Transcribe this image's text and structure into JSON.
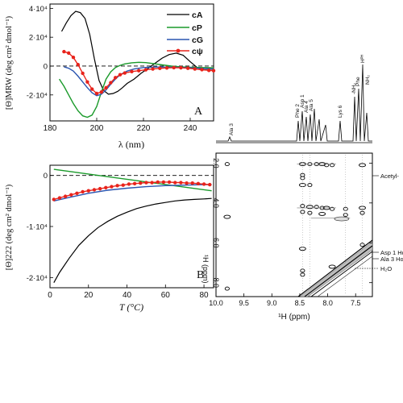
{
  "panelA": {
    "label": "A",
    "xlabel": "λ (nm)",
    "ylabel": "[Θ]MRW (deg cm² dmol⁻¹)",
    "xlim": [
      180,
      250
    ],
    "ylim": [
      -38000,
      43000
    ],
    "xticks": [
      "180",
      "200",
      "220",
      "240"
    ],
    "yticks": [
      "4·10⁴",
      "2·10⁴",
      "0",
      "-2·10⁴"
    ],
    "legend": [
      "cA",
      "cP",
      "cG",
      "cψ"
    ],
    "colors": {
      "cA": "#000000",
      "cP": "#1a9a2a",
      "cG": "#2a55b0",
      "cpsi": "#e8231b"
    },
    "chart_data": {
      "type": "line",
      "series": [
        {
          "name": "cA",
          "x": [
            185,
            187,
            189,
            191,
            193,
            195,
            197,
            199,
            201,
            203,
            205,
            207,
            209,
            211,
            213,
            216,
            219,
            222,
            225,
            228,
            231,
            234,
            237,
            240,
            243,
            246,
            250
          ],
          "y": [
            24000,
            30000,
            35000,
            38000,
            37000,
            33000,
            22000,
            5000,
            -10000,
            -17000,
            -19500,
            -19000,
            -17500,
            -15000,
            -12000,
            -9000,
            -5000,
            -1500,
            2000,
            5500,
            8000,
            9000,
            7500,
            3000,
            -1000,
            -2500,
            -3000
          ]
        },
        {
          "name": "cP",
          "x": [
            184,
            186,
            188,
            190,
            192,
            194,
            196,
            198,
            200,
            202,
            204,
            206,
            208,
            210,
            212,
            215,
            218,
            221,
            224,
            228,
            232,
            236,
            240,
            245,
            250
          ],
          "y": [
            -9000,
            -14000,
            -20000,
            -26000,
            -31000,
            -34500,
            -35500,
            -34000,
            -28000,
            -18000,
            -9000,
            -4000,
            -1000,
            500,
            1500,
            2300,
            2600,
            2400,
            1800,
            800,
            0,
            -500,
            -800,
            -1000,
            -1200
          ]
        },
        {
          "name": "cG",
          "x": [
            186,
            188,
            190,
            192,
            194,
            196,
            198,
            200,
            202,
            204,
            206,
            208,
            210,
            213,
            216,
            220,
            225,
            230,
            235,
            240,
            245,
            250
          ],
          "y": [
            -500,
            -1500,
            -3500,
            -7000,
            -11000,
            -15000,
            -18500,
            -20500,
            -19500,
            -16500,
            -12500,
            -9000,
            -6000,
            -3500,
            -2000,
            -1000,
            -700,
            -700,
            -900,
            -1200,
            -1600,
            -2000
          ]
        },
        {
          "name": "cψ",
          "x": [
            186,
            188,
            190,
            192,
            194,
            196,
            198,
            200,
            202,
            204,
            206,
            208,
            210,
            212,
            215,
            218,
            221,
            224,
            227,
            230,
            233,
            236,
            239,
            242,
            245,
            248,
            250
          ],
          "y": [
            10000,
            9000,
            6000,
            1000,
            -5000,
            -11000,
            -16000,
            -19000,
            -18000,
            -15000,
            -11500,
            -8000,
            -6000,
            -4800,
            -3800,
            -3200,
            -2600,
            -2000,
            -1600,
            -1300,
            -1100,
            -1200,
            -1500,
            -2000,
            -2500,
            -3000,
            -3200
          ]
        }
      ]
    }
  },
  "panelB": {
    "label": "B",
    "xlabel": "T (°C)",
    "ylabel": "[Θ]222 (deg cm² dmol⁻¹)",
    "xlim": [
      0,
      85
    ],
    "ylim": [
      -22000,
      2000
    ],
    "xticks": [
      "0",
      "20",
      "40",
      "60",
      "80"
    ],
    "yticks": [
      "0",
      "-1·10⁴",
      "-2·10⁴"
    ],
    "chart_data": {
      "type": "line",
      "series": [
        {
          "name": "cA",
          "x": [
            2,
            5,
            10,
            15,
            20,
            25,
            30,
            35,
            40,
            45,
            50,
            55,
            60,
            65,
            70,
            75,
            80,
            84
          ],
          "y": [
            -21000,
            -19000,
            -16200,
            -13700,
            -11800,
            -10200,
            -9000,
            -8000,
            -7200,
            -6500,
            -6000,
            -5600,
            -5300,
            -5000,
            -4800,
            -4700,
            -4600,
            -4500
          ]
        },
        {
          "name": "cP",
          "x": [
            2,
            84
          ],
          "y": [
            1200,
            -3000
          ]
        },
        {
          "name": "cG",
          "x": [
            2,
            10,
            20,
            30,
            40,
            50,
            60,
            70,
            80,
            84
          ],
          "y": [
            -5000,
            -4300,
            -3500,
            -2900,
            -2500,
            -2200,
            -2000,
            -1900,
            -1800,
            -1800
          ]
        },
        {
          "name": "cψ",
          "x": [
            2,
            5,
            8,
            11,
            14,
            17,
            20,
            23,
            26,
            29,
            32,
            35,
            38,
            41,
            44,
            47,
            50,
            53,
            56,
            59,
            62,
            65,
            68,
            71,
            74,
            77,
            80,
            83
          ],
          "y": [
            -4700,
            -4400,
            -4100,
            -3800,
            -3500,
            -3200,
            -3000,
            -2800,
            -2600,
            -2400,
            -2200,
            -2000,
            -1900,
            -1700,
            -1600,
            -1500,
            -1400,
            -1400,
            -1300,
            -1300,
            -1300,
            -1400,
            -1400,
            -1500,
            -1500,
            -1600,
            -1700,
            -1800
          ]
        }
      ]
    }
  },
  "nmr": {
    "xlabel": "¹H (ppm)",
    "ylabel": "¹H (ppm)",
    "xlim": [
      10.0,
      7.2
    ],
    "ylim": [
      1.5,
      8.7
    ],
    "xticks": [
      "10.0",
      "9.5",
      "9.0",
      "8.5",
      "8.0",
      "7.5"
    ],
    "yticks": [
      "2.0",
      "4.0",
      "6.0",
      "8.0"
    ],
    "labels_1d": [
      "Ala 3",
      "Phe 2",
      "Asp 1",
      "Ala 4",
      "Ala 5",
      "Lys 6",
      "-NH₂",
      "Phe",
      "Hᴾᴴ",
      "NH₂"
    ],
    "side_labels": [
      "Acetyl-",
      "Asp 1 Hα",
      "Ala 3 Hα",
      "H₂O"
    ]
  }
}
